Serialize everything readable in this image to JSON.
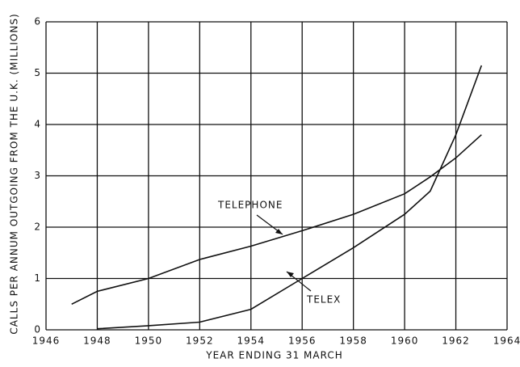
{
  "chart_data": {
    "type": "line",
    "x_label": "YEAR ENDING 31 MARCH",
    "y_label": "CALLS PER ANNUM OUTGOING FROM THE U.K. (MILLIONS)",
    "series": [
      {
        "name": "TELEPHONE",
        "color": "#111111",
        "x": [
          1947,
          1948,
          1950,
          1952,
          1954,
          1956,
          1958,
          1960,
          1961,
          1962,
          1963
        ],
        "values": [
          0.5,
          0.75,
          1.0,
          1.37,
          1.63,
          1.93,
          2.25,
          2.65,
          2.98,
          3.35,
          3.8
        ]
      },
      {
        "name": "TELEX",
        "color": "#111111",
        "x": [
          1948,
          1950,
          1952,
          1954,
          1956,
          1958,
          1960,
          1961,
          1962,
          1963
        ],
        "values": [
          0.02,
          0.08,
          0.15,
          0.4,
          1.0,
          1.6,
          2.25,
          2.7,
          3.8,
          5.15
        ]
      }
    ],
    "xlim": [
      1946,
      1964
    ],
    "xticks": [
      1946,
      1948,
      1950,
      1952,
      1954,
      1956,
      1958,
      1960,
      1962,
      1964
    ],
    "ylim": [
      0,
      6
    ],
    "yticks": [
      0,
      1,
      2,
      3,
      4,
      5,
      6
    ],
    "grid": true
  }
}
